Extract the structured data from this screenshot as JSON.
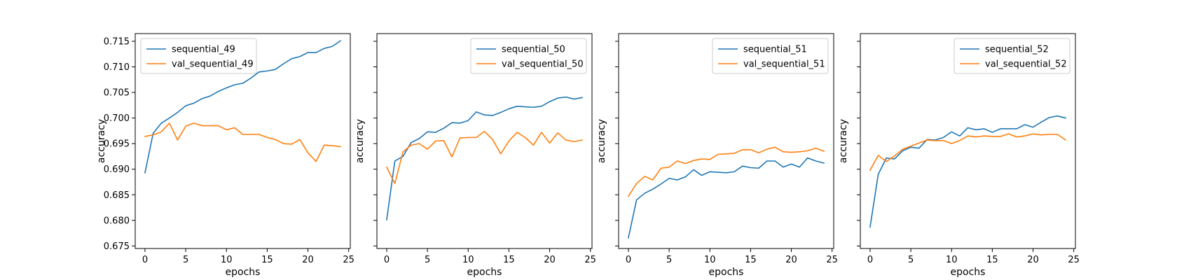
{
  "figure": {
    "background": "#ffffff"
  },
  "chart_data": [
    {
      "type": "line",
      "xlabel": "epochs",
      "ylabel": "accuracy",
      "xlim": [
        -1.2,
        25.2
      ],
      "ylim": [
        0.6745,
        0.7165
      ],
      "xticks": [
        0,
        5,
        10,
        15,
        20,
        25
      ],
      "yticks": [
        0.675,
        0.68,
        0.685,
        0.69,
        0.695,
        0.7,
        0.705,
        0.71,
        0.715
      ],
      "yticklabels": [
        "0.675",
        "0.680",
        "0.685",
        "0.690",
        "0.695",
        "0.700",
        "0.705",
        "0.710",
        "0.715"
      ],
      "show_ytick_labels": true,
      "grid": false,
      "legend": "top-left",
      "x": [
        0,
        1,
        2,
        3,
        4,
        5,
        6,
        7,
        8,
        9,
        10,
        11,
        12,
        13,
        14,
        15,
        16,
        17,
        18,
        19,
        20,
        21,
        22,
        23,
        24
      ],
      "series": [
        {
          "name": "sequential_49",
          "color": "#1f77b4",
          "values": [
            0.6893,
            0.697,
            0.699,
            0.7,
            0.7011,
            0.7024,
            0.7029,
            0.7038,
            0.7043,
            0.7052,
            0.7059,
            0.7065,
            0.7068,
            0.7078,
            0.709,
            0.7092,
            0.7095,
            0.7106,
            0.7116,
            0.712,
            0.7128,
            0.7128,
            0.7136,
            0.714,
            0.7151
          ]
        },
        {
          "name": "val_sequential_49",
          "color": "#ff7f0e",
          "values": [
            0.6964,
            0.6967,
            0.6973,
            0.699,
            0.6957,
            0.6984,
            0.699,
            0.6985,
            0.6985,
            0.6985,
            0.6977,
            0.6981,
            0.6968,
            0.6968,
            0.6968,
            0.6962,
            0.6958,
            0.695,
            0.6949,
            0.6958,
            0.6932,
            0.6915,
            0.6947,
            0.6946,
            0.6944
          ]
        }
      ]
    },
    {
      "type": "line",
      "xlabel": "epochs",
      "ylabel": "accuracy",
      "xlim": [
        -1.2,
        25.2
      ],
      "ylim": [
        0.6745,
        0.7165
      ],
      "xticks": [
        0,
        5,
        10,
        15,
        20,
        25
      ],
      "yticks": [
        0.675,
        0.68,
        0.685,
        0.69,
        0.695,
        0.7,
        0.705,
        0.71,
        0.715
      ],
      "yticklabels": [],
      "show_ytick_labels": false,
      "grid": false,
      "legend": "top-right",
      "x": [
        0,
        1,
        2,
        3,
        4,
        5,
        6,
        7,
        8,
        9,
        10,
        11,
        12,
        13,
        14,
        15,
        16,
        17,
        18,
        19,
        20,
        21,
        22,
        23,
        24
      ],
      "series": [
        {
          "name": "sequential_50",
          "color": "#1f77b4",
          "values": [
            0.6801,
            0.6916,
            0.6925,
            0.6952,
            0.696,
            0.6973,
            0.6972,
            0.698,
            0.6991,
            0.699,
            0.6995,
            0.7012,
            0.7006,
            0.7005,
            0.7011,
            0.7018,
            0.7023,
            0.7022,
            0.7021,
            0.7023,
            0.7032,
            0.7039,
            0.7041,
            0.7037,
            0.704
          ]
        },
        {
          "name": "val_sequential_50",
          "color": "#ff7f0e",
          "values": [
            0.6904,
            0.6872,
            0.6934,
            0.6947,
            0.695,
            0.6939,
            0.6955,
            0.6956,
            0.6924,
            0.6961,
            0.6962,
            0.6962,
            0.6974,
            0.6958,
            0.693,
            0.6955,
            0.6972,
            0.6962,
            0.6947,
            0.6972,
            0.6951,
            0.6971,
            0.6957,
            0.6954,
            0.6957
          ]
        }
      ]
    },
    {
      "type": "line",
      "xlabel": "epochs",
      "ylabel": "accuracy",
      "xlim": [
        -1.2,
        25.2
      ],
      "ylim": [
        0.6745,
        0.7165
      ],
      "xticks": [
        0,
        5,
        10,
        15,
        20,
        25
      ],
      "yticks": [
        0.675,
        0.68,
        0.685,
        0.69,
        0.695,
        0.7,
        0.705,
        0.71,
        0.715
      ],
      "yticklabels": [],
      "show_ytick_labels": false,
      "grid": false,
      "legend": "top-right",
      "x": [
        0,
        1,
        2,
        3,
        4,
        5,
        6,
        7,
        8,
        9,
        10,
        11,
        12,
        13,
        14,
        15,
        16,
        17,
        18,
        19,
        20,
        21,
        22,
        23,
        24
      ],
      "series": [
        {
          "name": "sequential_51",
          "color": "#1f77b4",
          "values": [
            0.6766,
            0.684,
            0.6853,
            0.6861,
            0.6871,
            0.6882,
            0.6879,
            0.6885,
            0.6899,
            0.6888,
            0.6895,
            0.6894,
            0.6893,
            0.6895,
            0.6906,
            0.6903,
            0.6902,
            0.6916,
            0.6916,
            0.6904,
            0.691,
            0.6904,
            0.6922,
            0.6916,
            0.6912
          ]
        },
        {
          "name": "val_sequential_51",
          "color": "#ff7f0e",
          "values": [
            0.6847,
            0.6872,
            0.6886,
            0.6879,
            0.6902,
            0.6904,
            0.6916,
            0.6911,
            0.6917,
            0.692,
            0.6919,
            0.6929,
            0.693,
            0.6931,
            0.6938,
            0.6938,
            0.6932,
            0.6939,
            0.6943,
            0.6934,
            0.6933,
            0.6934,
            0.6936,
            0.6941,
            0.6935
          ]
        }
      ]
    },
    {
      "type": "line",
      "xlabel": "epochs",
      "ylabel": "accuracy",
      "xlim": [
        -1.2,
        25.2
      ],
      "ylim": [
        0.6745,
        0.7165
      ],
      "xticks": [
        0,
        5,
        10,
        15,
        20,
        25
      ],
      "yticks": [
        0.675,
        0.68,
        0.685,
        0.69,
        0.695,
        0.7,
        0.705,
        0.71,
        0.715
      ],
      "yticklabels": [],
      "show_ytick_labels": false,
      "grid": false,
      "legend": "top-right",
      "x": [
        0,
        1,
        2,
        3,
        4,
        5,
        6,
        7,
        8,
        9,
        10,
        11,
        12,
        13,
        14,
        15,
        16,
        17,
        18,
        19,
        20,
        21,
        22,
        23,
        24
      ],
      "series": [
        {
          "name": "sequential_52",
          "color": "#1f77b4",
          "values": [
            0.6787,
            0.689,
            0.6922,
            0.692,
            0.6936,
            0.6943,
            0.6941,
            0.6958,
            0.6957,
            0.6962,
            0.6973,
            0.6965,
            0.6981,
            0.6977,
            0.6979,
            0.6972,
            0.6979,
            0.6979,
            0.6979,
            0.6987,
            0.6982,
            0.6992,
            0.7001,
            0.7004,
            0.7
          ]
        },
        {
          "name": "val_sequential_52",
          "color": "#ff7f0e",
          "values": [
            0.6898,
            0.6927,
            0.6915,
            0.6926,
            0.6939,
            0.6945,
            0.6951,
            0.6957,
            0.6956,
            0.6956,
            0.695,
            0.6956,
            0.6965,
            0.6963,
            0.6965,
            0.6964,
            0.6964,
            0.6969,
            0.6963,
            0.6965,
            0.6969,
            0.6967,
            0.6968,
            0.6968,
            0.6957
          ]
        }
      ]
    }
  ]
}
